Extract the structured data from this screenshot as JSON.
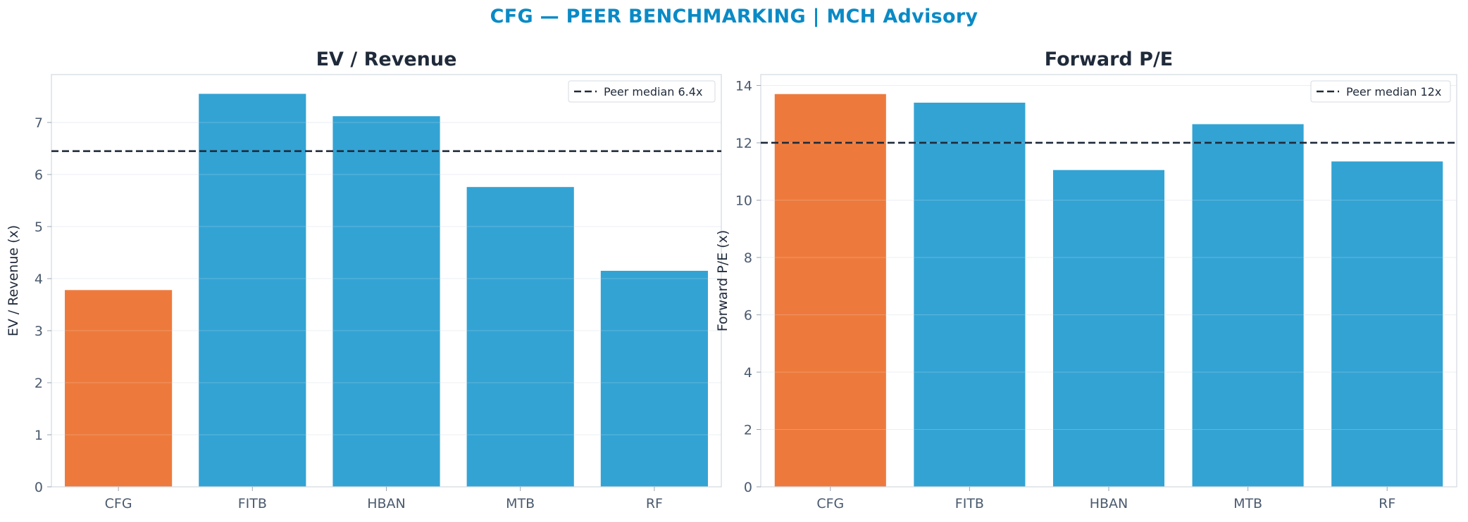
{
  "title": "CFG — PEER BENCHMARKING | MCH Advisory",
  "colors": {
    "highlight": "#ED7A3C",
    "peer": "#33A3D4",
    "median_line": "#1F2A3A",
    "title": "#0A8AC6"
  },
  "chart_data": [
    {
      "type": "bar",
      "title": "EV / Revenue",
      "ylabel": "EV / Revenue (x)",
      "categories": [
        "CFG",
        "FITB",
        "HBAN",
        "MTB",
        "RF"
      ],
      "values": [
        3.78,
        7.55,
        7.12,
        5.76,
        4.15
      ],
      "highlight": "CFG",
      "ylim": [
        0,
        7.92
      ],
      "yticks": [
        0,
        1,
        2,
        3,
        4,
        5,
        6,
        7
      ],
      "reference_line": {
        "value": 6.45,
        "label": "Peer median 6.4x",
        "style": "dashed"
      },
      "legend": "top-right",
      "grid": true
    },
    {
      "type": "bar",
      "title": "Forward P/E",
      "ylabel": "Forward P/E (x)",
      "categories": [
        "CFG",
        "FITB",
        "HBAN",
        "MTB",
        "RF"
      ],
      "values": [
        13.7,
        13.4,
        11.05,
        12.65,
        11.35
      ],
      "highlight": "CFG",
      "ylim": [
        0,
        14.38
      ],
      "yticks": [
        0,
        2,
        4,
        6,
        8,
        10,
        12,
        14
      ],
      "reference_line": {
        "value": 12.0,
        "label": "Peer median 12x",
        "style": "dashed"
      },
      "legend": "top-right",
      "grid": true
    }
  ]
}
